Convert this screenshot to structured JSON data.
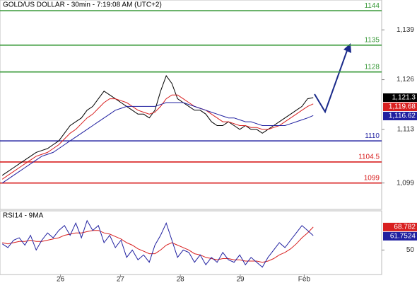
{
  "chart_data": [
    {
      "type": "line",
      "title": "GOLD/US DOLLAR - 30min - 7:19:08 AM (UTC+2)",
      "xlim": [
        -0.4,
        67.1
      ],
      "ylim": [
        1092.1,
        1146.8
      ],
      "yticks": [
        {
          "value": 1099,
          "label": "1,099"
        },
        {
          "value": 1113,
          "label": "1,113"
        },
        {
          "value": 1126,
          "label": "1,126"
        },
        {
          "value": 1139,
          "label": "1,139"
        }
      ],
      "levels": [
        {
          "value": 1144,
          "color": "#3a9a3a"
        },
        {
          "value": 1135,
          "color": "#3a9a3a"
        },
        {
          "value": 1128,
          "color": "#3a9a3a"
        },
        {
          "value": 1110,
          "color": "#2020a0"
        },
        {
          "value": 1104.5,
          "color": "#d82020"
        },
        {
          "value": 1099,
          "color": "#d82020"
        }
      ],
      "price_labels": [
        {
          "value": 1121.3,
          "label": "1,121.3",
          "color": "#000000"
        },
        {
          "value": 1119.68,
          "label": "1,119.68",
          "color": "#d82020"
        },
        {
          "value": 1116.62,
          "label": "1,116.62",
          "color": "#2020a0"
        }
      ],
      "series": [
        {
          "color": "#000000",
          "values": [
            1101,
            1102,
            1103,
            1104,
            1105,
            1106,
            1107,
            1107.5,
            1108,
            1109,
            1110,
            1112,
            1114,
            1115,
            1116,
            1118,
            1119,
            1121,
            1123,
            1122,
            1121,
            1120,
            1119,
            1118,
            1117,
            1117,
            1116,
            1118,
            1123,
            1127,
            1125,
            1121,
            1120,
            1119,
            1118,
            1118,
            1117,
            1115,
            1114,
            1114,
            1115,
            1114,
            1113,
            1114,
            1113,
            1113,
            1112,
            1113,
            1114,
            1115,
            1116,
            1117,
            1118,
            1119,
            1121,
            1121.3
          ]
        },
        {
          "color": "#d82020",
          "values": [
            1100,
            1101,
            1102,
            1103,
            1104,
            1105,
            1106,
            1106.5,
            1107,
            1108,
            1109,
            1110.5,
            1112,
            1113,
            1114.5,
            1116,
            1117,
            1118.5,
            1120,
            1121,
            1121,
            1120.5,
            1120,
            1119,
            1118,
            1117.5,
            1117,
            1117.5,
            1119,
            1121,
            1122,
            1122,
            1121,
            1120,
            1119,
            1118.5,
            1118,
            1117,
            1116,
            1115,
            1115,
            1114.5,
            1114,
            1114,
            1113.5,
            1113.5,
            1113,
            1113,
            1113.5,
            1114,
            1115,
            1116,
            1117,
            1118,
            1119,
            1119.68
          ]
        },
        {
          "color": "#2020a0",
          "values": [
            1099,
            1100,
            1101,
            1102,
            1103,
            1104,
            1105,
            1106,
            1106.5,
            1107,
            1108,
            1109,
            1110,
            1111,
            1112,
            1113,
            1114,
            1115,
            1116,
            1117,
            1118,
            1118.5,
            1119,
            1119,
            1119,
            1119,
            1119,
            1119,
            1119.5,
            1120,
            1120,
            1120,
            1120,
            1119.5,
            1119,
            1118.5,
            1118,
            1117.5,
            1117,
            1116.5,
            1116,
            1116,
            1115.5,
            1115,
            1115,
            1114.5,
            1114,
            1114,
            1114,
            1114,
            1114,
            1114.5,
            1115,
            1115.5,
            1116,
            1116.62
          ]
        }
      ]
    },
    {
      "type": "line",
      "title": "RSI14 - 9MA",
      "xlim": [
        -0.4,
        67.1
      ],
      "ylim": [
        30,
        82
      ],
      "yticks": [
        50
      ],
      "xticks": [
        {
          "value": 10.3,
          "label": "26"
        },
        {
          "value": 20.9,
          "label": "27"
        },
        {
          "value": 31.5,
          "label": "28"
        },
        {
          "value": 42.1,
          "label": "29"
        },
        {
          "value": 53.4,
          "label": "Feb"
        }
      ],
      "price_labels": [
        {
          "value": 68.782,
          "label": "68.782",
          "color": "#d82020"
        },
        {
          "value": 61.7524,
          "label": "61.7524",
          "color": "#2020a0"
        }
      ],
      "series": [
        {
          "color": "#d82020",
          "values": [
            56,
            55,
            56,
            57,
            57,
            58,
            57,
            57,
            58,
            59,
            60,
            62,
            63,
            64,
            64,
            65,
            66,
            66,
            64,
            63,
            61,
            59,
            56,
            54,
            51,
            49,
            47,
            47,
            50,
            54,
            56,
            54,
            52,
            50,
            47,
            46,
            44,
            43,
            42,
            43,
            43,
            42,
            42,
            41,
            41,
            41,
            40,
            41,
            43,
            46,
            48,
            51,
            55,
            60,
            64,
            68.782
          ]
        },
        {
          "color": "#2020a0",
          "values": [
            55,
            52,
            58,
            60,
            54,
            62,
            50,
            58,
            64,
            60,
            66,
            70,
            62,
            72,
            60,
            74,
            66,
            70,
            56,
            62,
            52,
            58,
            44,
            50,
            42,
            46,
            40,
            54,
            62,
            72,
            58,
            44,
            50,
            48,
            40,
            46,
            38,
            44,
            40,
            48,
            42,
            40,
            46,
            38,
            44,
            40,
            36,
            44,
            50,
            56,
            52,
            58,
            64,
            70,
            66,
            61.7524
          ]
        }
      ]
    }
  ]
}
